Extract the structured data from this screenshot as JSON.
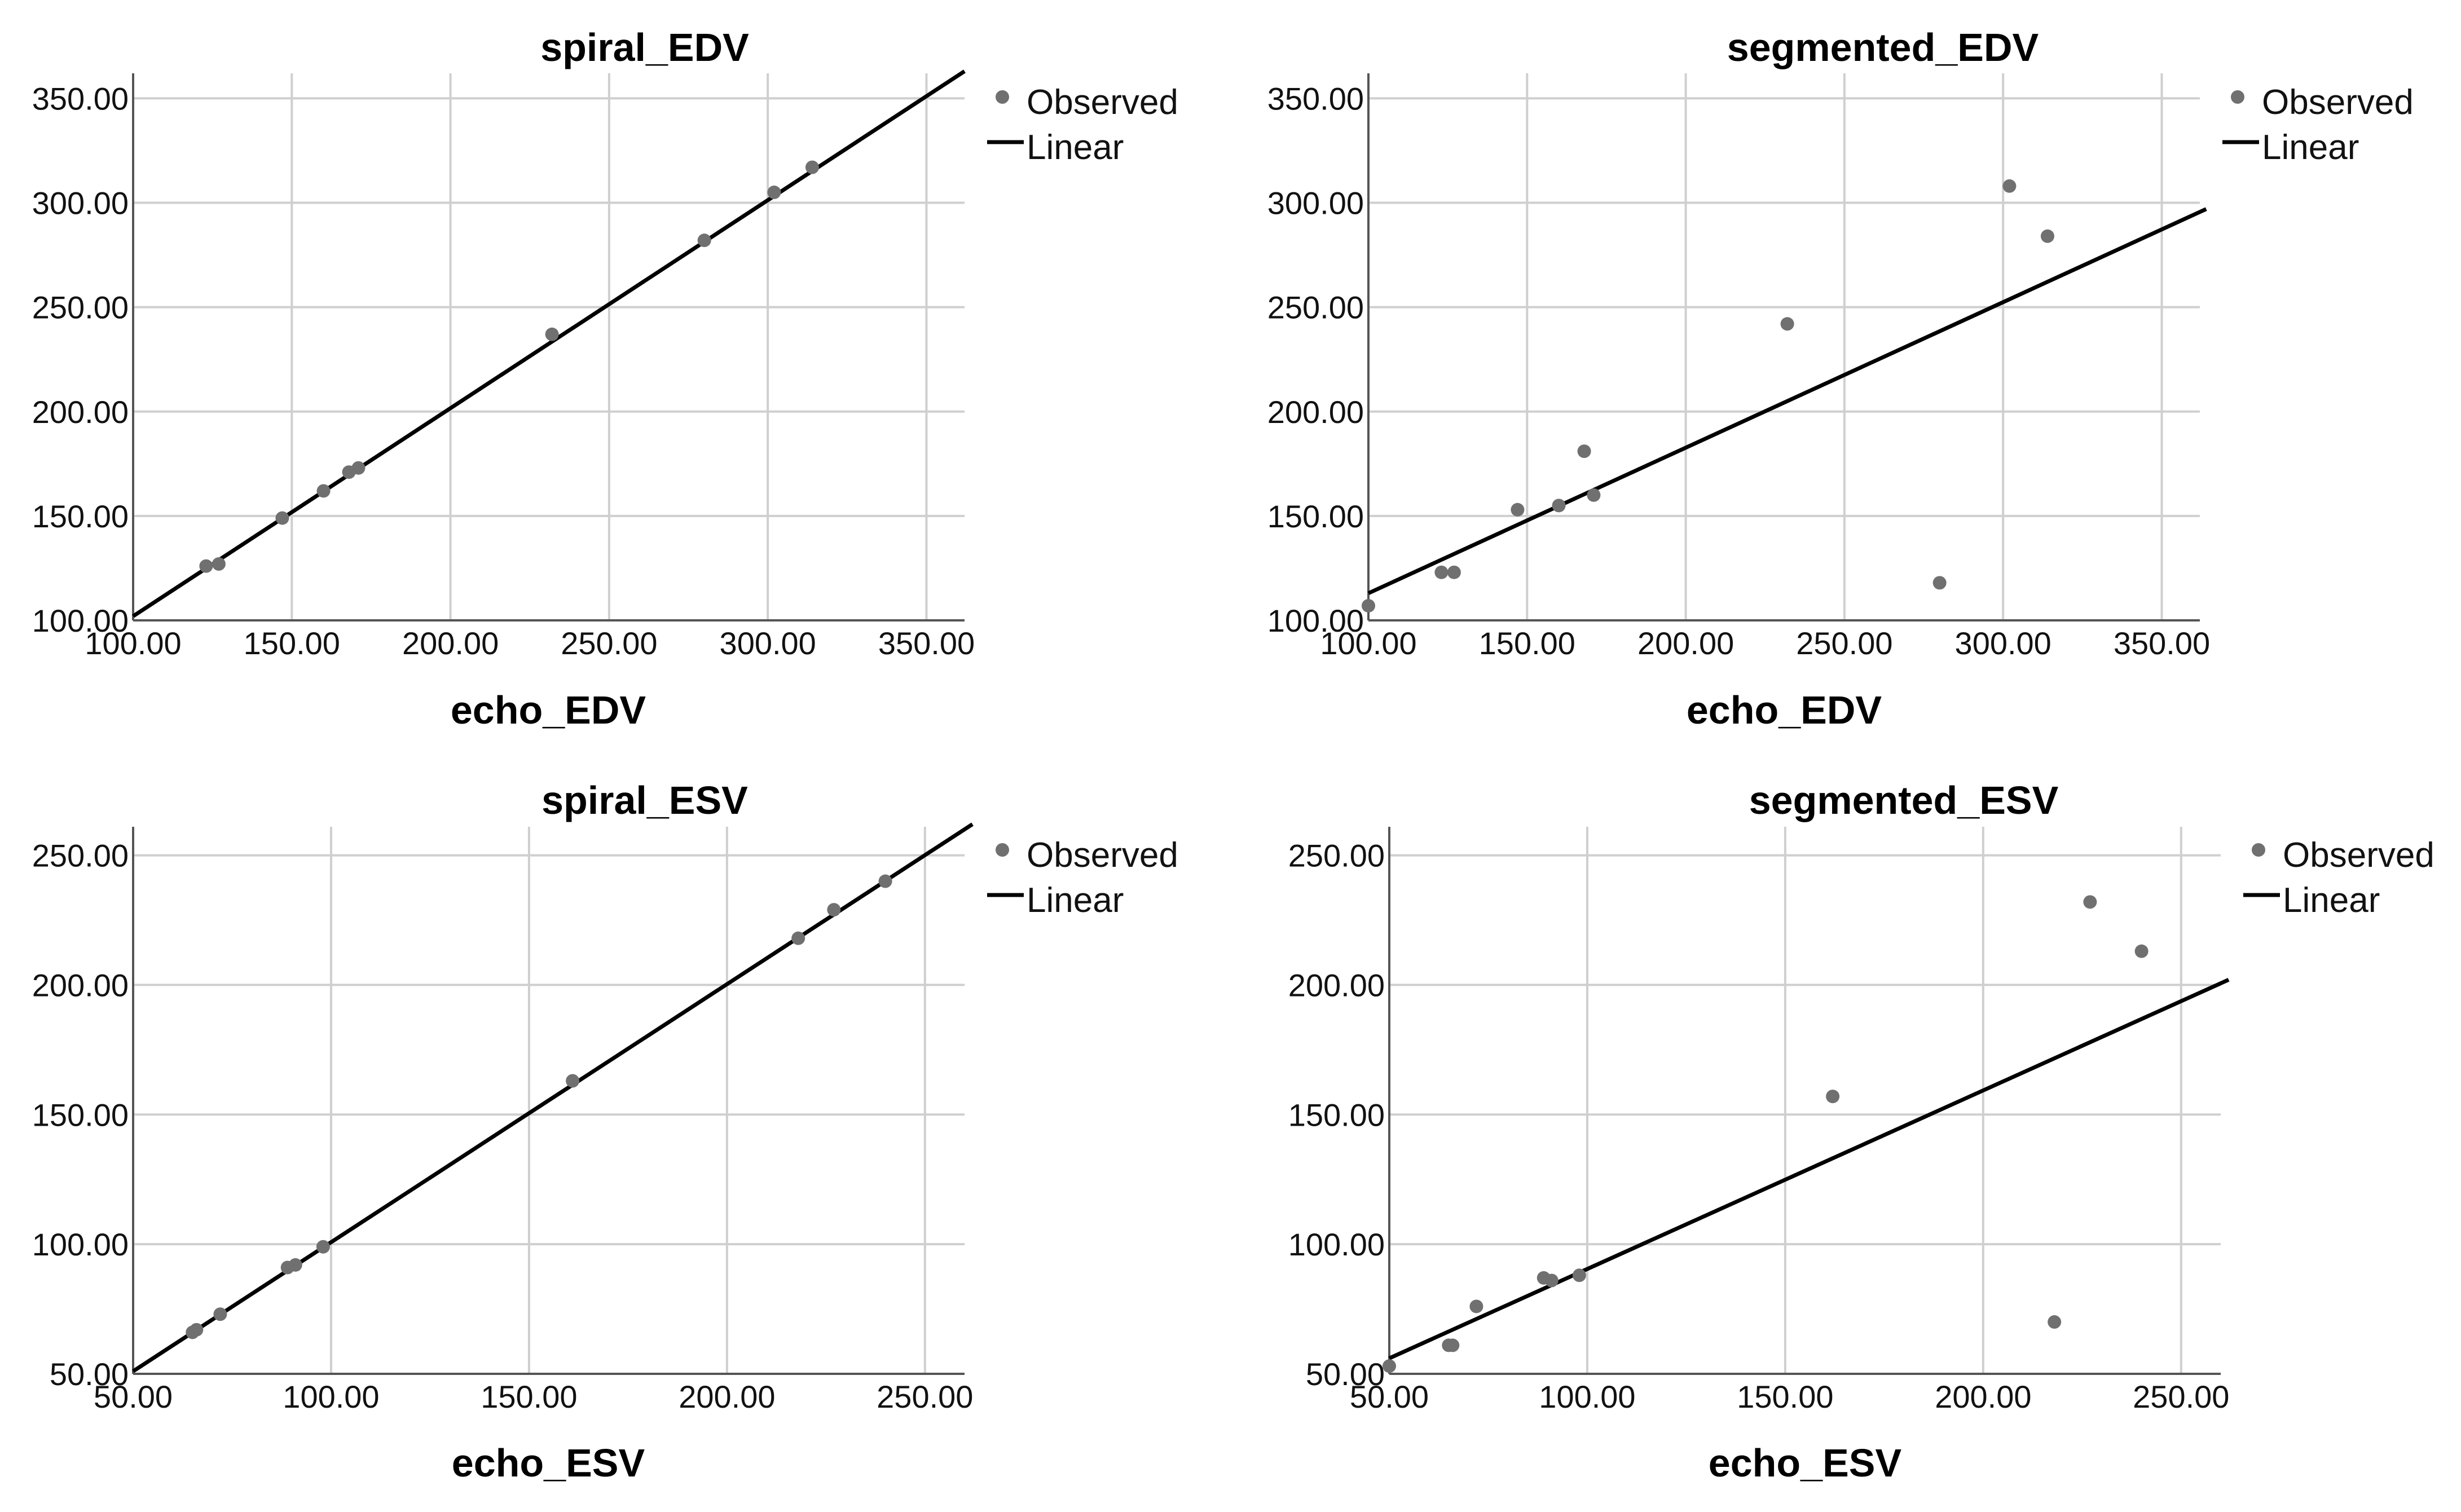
{
  "chart_data": [
    {
      "type": "scatter",
      "title": "spiral_EDV",
      "xlabel": "echo_EDV",
      "ylabel": "",
      "xlim": [
        100,
        362
      ],
      "ylim": [
        100,
        362
      ],
      "xticks": [
        100,
        150,
        200,
        250,
        300,
        350
      ],
      "yticks": [
        100,
        150,
        200,
        250,
        300,
        350
      ],
      "tick_format": "2dp",
      "grid": true,
      "legend": [
        "Observed",
        "Linear"
      ],
      "legend_position": "right",
      "points": [
        [
          123,
          126
        ],
        [
          127,
          127
        ],
        [
          147,
          149
        ],
        [
          160,
          162
        ],
        [
          168,
          171
        ],
        [
          171,
          173
        ],
        [
          232,
          237
        ],
        [
          280,
          282
        ],
        [
          302,
          305
        ],
        [
          314,
          317
        ]
      ],
      "fit_line": [
        [
          100,
          102
        ],
        [
          362,
          363
        ]
      ]
    },
    {
      "type": "scatter",
      "title": "segmented_EDV",
      "xlabel": "echo_EDV",
      "ylabel": "",
      "xlim": [
        100,
        362
      ],
      "ylim": [
        100,
        362
      ],
      "xticks": [
        100,
        150,
        200,
        250,
        300,
        350
      ],
      "yticks": [
        100,
        150,
        200,
        250,
        300,
        350
      ],
      "tick_format": "2dp",
      "grid": true,
      "legend": [
        "Observed",
        "Linear"
      ],
      "legend_position": "right",
      "points": [
        [
          100,
          107
        ],
        [
          123,
          123
        ],
        [
          127,
          123
        ],
        [
          147,
          153
        ],
        [
          160,
          155
        ],
        [
          168,
          181
        ],
        [
          171,
          160
        ],
        [
          232,
          242
        ],
        [
          280,
          118
        ],
        [
          302,
          308
        ],
        [
          314,
          284
        ]
      ],
      "fit_line": [
        [
          100,
          113
        ],
        [
          364,
          297
        ]
      ]
    },
    {
      "type": "scatter",
      "title": "spiral_ESV",
      "xlabel": "echo_ESV",
      "ylabel": "",
      "xlim": [
        50,
        260
      ],
      "ylim": [
        50,
        261
      ],
      "xticks": [
        50,
        100,
        150,
        200,
        250
      ],
      "yticks": [
        50,
        100,
        150,
        200,
        250
      ],
      "tick_format": "2dp",
      "grid": true,
      "legend": [
        "Observed",
        "Linear"
      ],
      "legend_position": "right",
      "points": [
        [
          65,
          66
        ],
        [
          66,
          67
        ],
        [
          72,
          73
        ],
        [
          89,
          91
        ],
        [
          91,
          92
        ],
        [
          98,
          99
        ],
        [
          161,
          163
        ],
        [
          218,
          218
        ],
        [
          227,
          229
        ],
        [
          240,
          240
        ]
      ],
      "fit_line": [
        [
          50,
          51
        ],
        [
          262,
          262
        ]
      ]
    },
    {
      "type": "scatter",
      "title": "segmented_ESV",
      "xlabel": "echo_ESV",
      "ylabel": "",
      "xlim": [
        50,
        260
      ],
      "ylim": [
        50,
        261
      ],
      "xticks": [
        50,
        100,
        150,
        200,
        250
      ],
      "yticks": [
        50,
        100,
        150,
        200,
        250
      ],
      "tick_format": "2dp",
      "grid": true,
      "legend": [
        "Observed",
        "Linear"
      ],
      "legend_position": "right",
      "points": [
        [
          50,
          53
        ],
        [
          65,
          61
        ],
        [
          66,
          61
        ],
        [
          72,
          76
        ],
        [
          89,
          87
        ],
        [
          91,
          86
        ],
        [
          98,
          88
        ],
        [
          162,
          157
        ],
        [
          218,
          70
        ],
        [
          227,
          232
        ],
        [
          240,
          213
        ]
      ],
      "fit_line": [
        [
          50,
          56
        ],
        [
          262,
          202
        ]
      ]
    }
  ]
}
